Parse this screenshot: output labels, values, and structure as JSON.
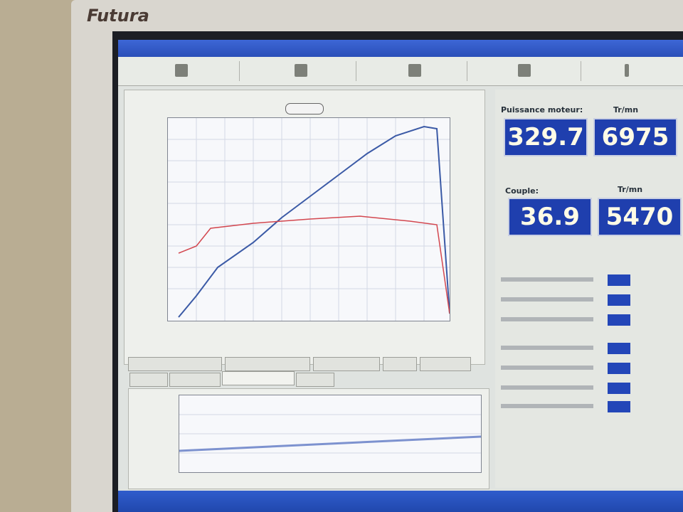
{
  "brand": "Futura",
  "readouts": [
    {
      "label": "Puissance moteur:",
      "value": 329.7
    },
    {
      "label": "Tr/mn",
      "value": 6975
    },
    {
      "label": "Couple:",
      "value": 36.9
    },
    {
      "label": "Tr/mn",
      "value": 5470
    }
  ]
}
